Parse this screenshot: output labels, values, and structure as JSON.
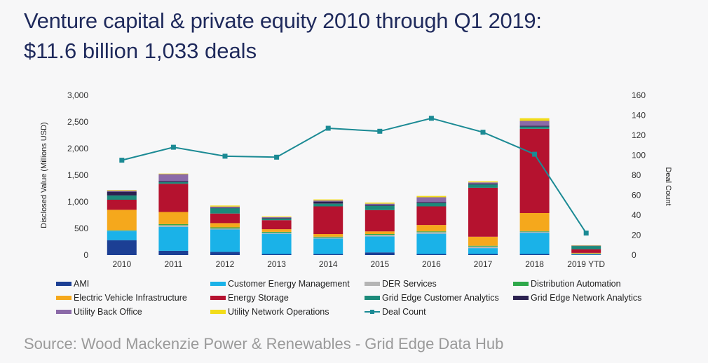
{
  "title": "Venture capital & private equity 2010 through Q1 2019:",
  "subtitle": "$11.6 billion 1,033 deals",
  "source": "Source: Wood Mackenzie Power & Renewables - Grid Edge Data Hub",
  "chart_data": {
    "type": "bar",
    "stacked": true,
    "categories": [
      "2010",
      "2011",
      "2012",
      "2013",
      "2014",
      "2015",
      "2016",
      "2017",
      "2018",
      "2019 YTD"
    ],
    "ylabel": "Disclosed Value (Millions USD)",
    "y2label": "Deal Count",
    "ylim": [
      0,
      3000
    ],
    "y2lim": [
      0,
      160
    ],
    "yticks": [
      "0",
      "500",
      "1,000",
      "1,500",
      "2,000",
      "2,500",
      "3,000"
    ],
    "y2ticks": [
      "0",
      "20",
      "40",
      "60",
      "80",
      "100",
      "120",
      "140",
      "160"
    ],
    "series": [
      {
        "name": "AMI",
        "color": "#1c3f94",
        "values": [
          280,
          80,
          60,
          20,
          20,
          50,
          20,
          20,
          20,
          10
        ]
      },
      {
        "name": "Customer Energy Management",
        "color": "#1ab2e8",
        "values": [
          170,
          450,
          420,
          380,
          290,
          300,
          380,
          110,
          400,
          10
        ]
      },
      {
        "name": "DER Services",
        "color": "#b5b5b5",
        "values": [
          10,
          30,
          20,
          20,
          20,
          30,
          30,
          30,
          20,
          5
        ]
      },
      {
        "name": "Distribution Automation",
        "color": "#2ea84a",
        "values": [
          10,
          20,
          20,
          15,
          15,
          15,
          15,
          15,
          10,
          5
        ]
      },
      {
        "name": "Electric Vehicle Infrastructure",
        "color": "#f5a81c",
        "values": [
          380,
          230,
          80,
          50,
          50,
          50,
          120,
          170,
          340,
          10
        ]
      },
      {
        "name": "Energy Storage",
        "color": "#b5122f",
        "values": [
          190,
          530,
          180,
          170,
          520,
          400,
          350,
          920,
          1580,
          70
        ]
      },
      {
        "name": "Grid Edge Customer Analytics",
        "color": "#1c8a7a",
        "values": [
          80,
          30,
          100,
          30,
          50,
          80,
          60,
          60,
          40,
          60
        ]
      },
      {
        "name": "Grid Edge Network Analytics",
        "color": "#2b2150",
        "values": [
          70,
          20,
          10,
          10,
          40,
          20,
          20,
          20,
          20,
          5
        ]
      },
      {
        "name": "Utility Back Office",
        "color": "#8b6aa8",
        "values": [
          20,
          130,
          20,
          15,
          20,
          20,
          90,
          20,
          90,
          5
        ]
      },
      {
        "name": "Utility Network Operations",
        "color": "#f2dc1a",
        "values": [
          10,
          10,
          20,
          15,
          20,
          20,
          25,
          20,
          50,
          5
        ]
      }
    ],
    "line": {
      "name": "Deal Count",
      "color": "#1b8a94",
      "values": [
        95,
        108,
        99,
        98,
        127,
        124,
        137,
        123,
        101,
        22
      ]
    },
    "legend": "bottom"
  }
}
